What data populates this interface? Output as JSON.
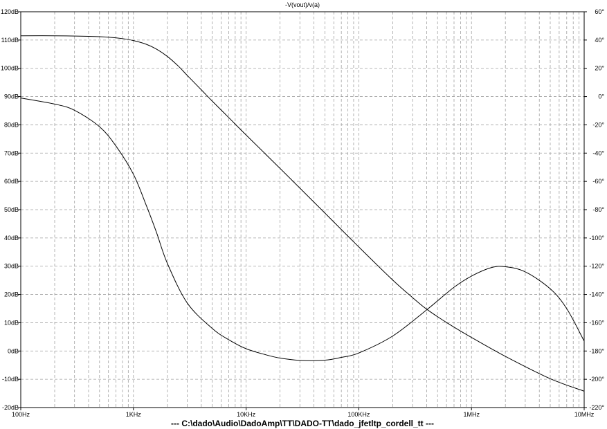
{
  "chart_data": {
    "type": "line",
    "title": "-V(vout)/v(a)",
    "footer": "---  C:\\dado\\Audio\\DadoAmp\\TT\\DADO-TT\\dado_jfetltp_cordell_tt  ---",
    "x_scale": "log",
    "xlim": [
      100,
      10000000
    ],
    "ylim_left": [
      -20,
      120
    ],
    "ylim_right": [
      -220,
      60
    ],
    "grid": true,
    "x_ticks": [
      {
        "value": 100,
        "label": "100Hz"
      },
      {
        "value": 1000,
        "label": "1KHz"
      },
      {
        "value": 10000,
        "label": "10KHz"
      },
      {
        "value": 100000,
        "label": "100KHz"
      },
      {
        "value": 1000000,
        "label": "1MHz"
      },
      {
        "value": 10000000,
        "label": "10MHz"
      }
    ],
    "y_ticks_left": [
      {
        "value": 120,
        "label": "120dB"
      },
      {
        "value": 110,
        "label": "110dB"
      },
      {
        "value": 100,
        "label": "100dB"
      },
      {
        "value": 90,
        "label": "90dB"
      },
      {
        "value": 80,
        "label": "80dB"
      },
      {
        "value": 70,
        "label": "70dB"
      },
      {
        "value": 60,
        "label": "60dB"
      },
      {
        "value": 50,
        "label": "50dB"
      },
      {
        "value": 40,
        "label": "40dB"
      },
      {
        "value": 30,
        "label": "30dB"
      },
      {
        "value": 20,
        "label": "20dB"
      },
      {
        "value": 10,
        "label": "10dB"
      },
      {
        "value": 0,
        "label": "0dB"
      },
      {
        "value": -10,
        "label": "-10dB"
      },
      {
        "value": -20,
        "label": "-20dB"
      }
    ],
    "y_ticks_right": [
      {
        "value": 60,
        "label": "60°"
      },
      {
        "value": 40,
        "label": "40°"
      },
      {
        "value": 20,
        "label": "20°"
      },
      {
        "value": 0,
        "label": "0°"
      },
      {
        "value": -20,
        "label": "-20°"
      },
      {
        "value": -40,
        "label": "-40°"
      },
      {
        "value": -60,
        "label": "-60°"
      },
      {
        "value": -80,
        "label": "-80°"
      },
      {
        "value": -100,
        "label": "-100°"
      },
      {
        "value": -120,
        "label": "-120°"
      },
      {
        "value": -140,
        "label": "-140°"
      },
      {
        "value": -160,
        "label": "-160°"
      },
      {
        "value": -180,
        "label": "-180°"
      },
      {
        "value": -200,
        "label": "-200°"
      },
      {
        "value": -220,
        "label": "-220°"
      }
    ],
    "series": [
      {
        "axis": "left",
        "x": [
          100,
          200,
          400,
          600,
          800,
          1000,
          1300,
          1600,
          2000,
          2500,
          3000,
          4000,
          5000,
          7000,
          10000,
          20000,
          50000,
          100000,
          200000,
          300000,
          400000,
          600000,
          1000000,
          2000000,
          5000000,
          10000000
        ],
        "values": [
          111.5,
          111.5,
          111.3,
          111.0,
          110.5,
          109.8,
          108.5,
          106.8,
          104.2,
          100.8,
          97.5,
          92.4,
          88.4,
          82.6,
          76.4,
          64.6,
          48.8,
          36.8,
          25.1,
          18.9,
          14.8,
          10.1,
          4.8,
          -1.9,
          -9.8,
          -14.2
        ]
      },
      {
        "axis": "right",
        "x": [
          100,
          200,
          300,
          500,
          700,
          1000,
          1300,
          1600,
          2000,
          3000,
          5000,
          7000,
          10000,
          15000,
          20000,
          30000,
          50000,
          70000,
          100000,
          200000,
          400000,
          700000,
          1000000,
          1500000,
          2000000,
          3000000,
          5000000,
          7000000,
          10000000
        ],
        "values": [
          -1.0,
          -5.3,
          -9.7,
          -21.3,
          -35.0,
          -55.0,
          -77.0,
          -96.0,
          -118.0,
          -146.0,
          -164.0,
          -172.0,
          -178.4,
          -182.7,
          -185.0,
          -186.6,
          -186.5,
          -184.5,
          -181.4,
          -169.4,
          -150.9,
          -134.9,
          -127.0,
          -121.0,
          -120.4,
          -124.0,
          -136.0,
          -150.0,
          -173.0
        ]
      }
    ]
  }
}
